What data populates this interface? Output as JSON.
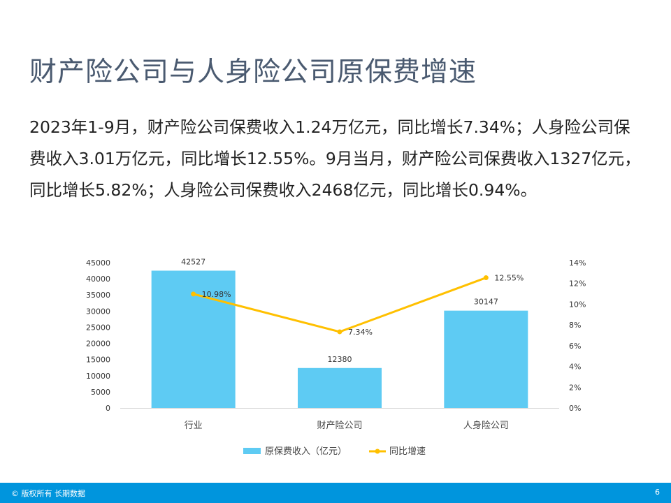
{
  "title": "财产险公司与人身险公司原保费增速",
  "paragraph": "2023年1-9月，财产险公司保费收入1.24万亿元，同比增长7.34%；人身险公司保费收入3.01万亿元，同比增长12.55%。9月当月，财产险公司保费收入1327亿元，同比增长5.82%；人身险公司保费收入2468亿元，同比增长0.94%。",
  "footer": {
    "copyright": "© 版权所有 长期数据",
    "page": "6"
  },
  "chart_data": {
    "type": "bar+line",
    "categories": [
      "行业",
      "财产险公司",
      "人身险公司"
    ],
    "series": [
      {
        "name": "原保费收入（亿元）",
        "type": "bar",
        "axis": "left",
        "values": [
          42527,
          12380,
          30147
        ],
        "labels": [
          "42527",
          "12380",
          "30147"
        ],
        "color": "#5ecbf3"
      },
      {
        "name": "同比增速",
        "type": "line",
        "axis": "right",
        "values": [
          10.98,
          7.34,
          12.55
        ],
        "labels": [
          "10.98%",
          "7.34%",
          "12.55%"
        ],
        "color": "#ffc000"
      }
    ],
    "left_axis": {
      "range": [
        0,
        45000
      ],
      "ticks": [
        "0",
        "5000",
        "10000",
        "15000",
        "20000",
        "25000",
        "30000",
        "35000",
        "40000",
        "45000"
      ]
    },
    "right_axis": {
      "range": [
        0,
        14
      ],
      "ticks": [
        "0%",
        "2%",
        "4%",
        "6%",
        "8%",
        "10%",
        "12%",
        "14%"
      ]
    },
    "grid": false,
    "legend": "bottom"
  }
}
